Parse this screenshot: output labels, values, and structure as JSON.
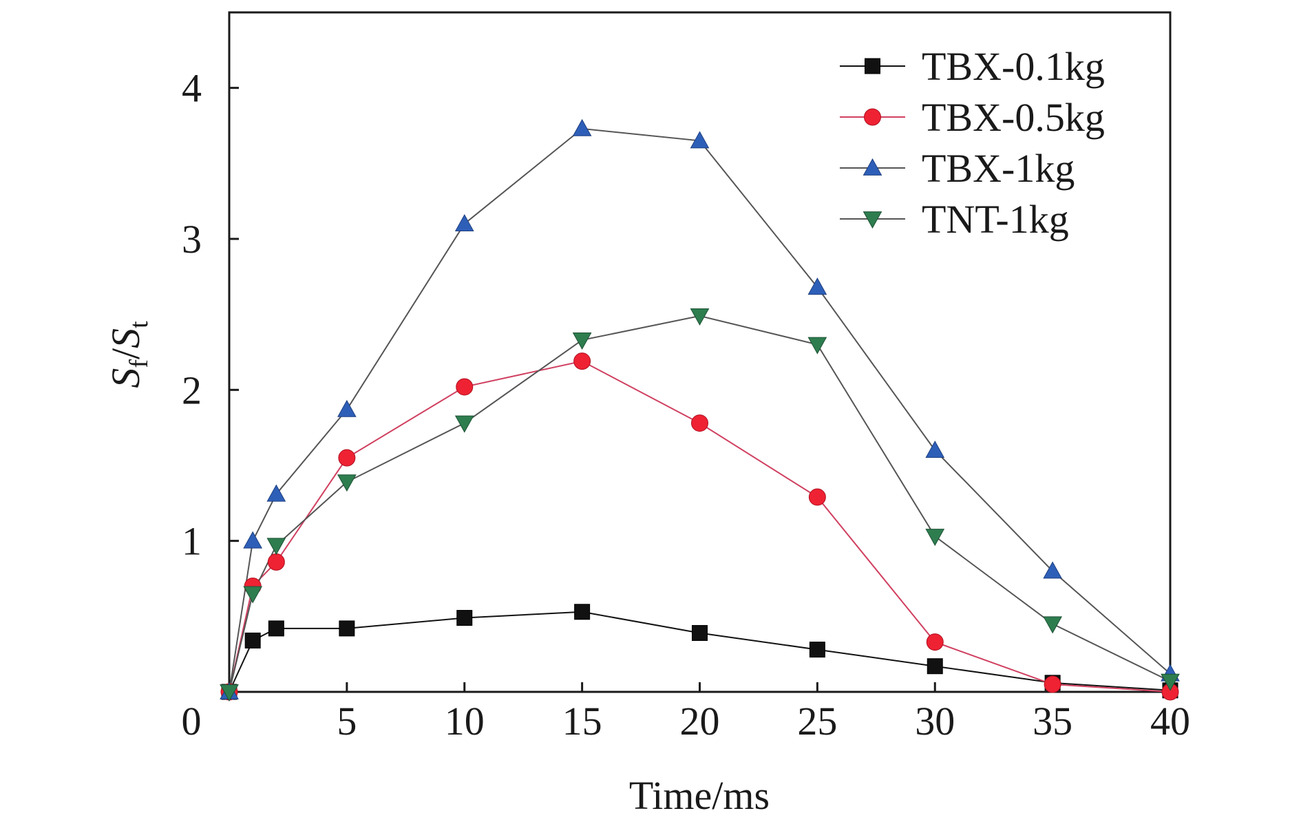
{
  "chart_data": {
    "type": "line",
    "xlabel": "Time/ms",
    "ylabel": {
      "main": "S",
      "sub_f": "f",
      "slash": "/",
      "main2": "S",
      "sub_t": "t"
    },
    "xlim": [
      0,
      40
    ],
    "ylim": [
      0,
      4.5
    ],
    "x_ticks": [
      0,
      5,
      10,
      15,
      20,
      25,
      30,
      35,
      40
    ],
    "x_tick_labels": [
      "0",
      "5",
      "10",
      "15",
      "20",
      "25",
      "30",
      "35",
      "40"
    ],
    "y_ticks": [
      1,
      2,
      3,
      4
    ],
    "y_tick_labels": [
      "1",
      "2",
      "3",
      "4"
    ],
    "grid": false,
    "legend_position": "top-right",
    "x": [
      0,
      1,
      2,
      5,
      10,
      15,
      20,
      25,
      30,
      35,
      40
    ],
    "series": [
      {
        "name": "TBX-0.1kg",
        "marker": "square",
        "color": "#111111",
        "line_color": "#111111",
        "values": [
          0,
          0.34,
          0.42,
          0.42,
          0.49,
          0.53,
          0.39,
          0.28,
          0.17,
          0.06,
          0.01
        ]
      },
      {
        "name": "TBX-0.5kg",
        "marker": "circle",
        "color": "#ee2233",
        "line_color": "#d04060",
        "values": [
          0,
          0.7,
          0.86,
          1.55,
          2.02,
          2.19,
          1.78,
          1.29,
          0.33,
          0.05,
          0.0
        ]
      },
      {
        "name": "TBX-1kg",
        "marker": "triangle-up",
        "color": "#2e5fb8",
        "line_color": "#555555",
        "values": [
          0,
          1.0,
          1.31,
          1.87,
          3.1,
          3.73,
          3.65,
          2.68,
          1.6,
          0.8,
          0.12
        ]
      },
      {
        "name": "TNT-1kg",
        "marker": "triangle-down",
        "color": "#2e7d4f",
        "line_color": "#555555",
        "values": [
          0,
          0.65,
          0.97,
          1.39,
          1.78,
          2.33,
          2.49,
          2.3,
          1.03,
          0.45,
          0.07
        ]
      }
    ]
  }
}
